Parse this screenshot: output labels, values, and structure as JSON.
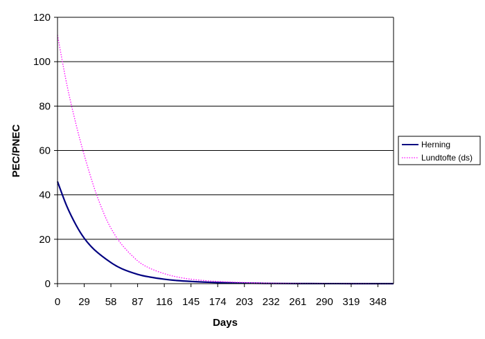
{
  "chart_data": {
    "type": "line",
    "title": "",
    "xlabel": "Days",
    "ylabel": "PEC/PNEC",
    "x_ticks": [
      "0",
      "29",
      "58",
      "87",
      "116",
      "145",
      "174",
      "203",
      "232",
      "261",
      "290",
      "319",
      "348"
    ],
    "y_ticks": [
      "0",
      "20",
      "40",
      "60",
      "80",
      "100",
      "120"
    ],
    "xlim": [
      0,
      365
    ],
    "ylim": [
      0,
      120
    ],
    "grid": "horizontal major gridlines",
    "legend_position": "right",
    "series": [
      {
        "name": "Herning",
        "color": "#000080",
        "style": "solid",
        "x": [
          0,
          10,
          20,
          29,
          40,
          58,
          70,
          87,
          100,
          116,
          130,
          145,
          160,
          174,
          190,
          203,
          220,
          232,
          261,
          290,
          319,
          348,
          365
        ],
        "y": [
          46,
          35,
          26.5,
          20.5,
          15.3,
          9.5,
          6.7,
          4.2,
          3.0,
          2.0,
          1.4,
          1.0,
          0.7,
          0.5,
          0.35,
          0.25,
          0.15,
          0.1,
          0.05,
          0.02,
          0.01,
          0.0,
          0.0
        ]
      },
      {
        "name": "Lundtofte (ds)",
        "color": "#ff00ff",
        "style": "dotted",
        "x": [
          0,
          10,
          20,
          29,
          40,
          50,
          58,
          70,
          87,
          100,
          116,
          130,
          145,
          160,
          174,
          190,
          203,
          220,
          232,
          261,
          290,
          319,
          348,
          365
        ],
        "y": [
          112,
          90,
          72,
          58,
          43,
          32,
          25,
          17.5,
          10.3,
          7,
          4.5,
          3,
          2,
          1.4,
          1.0,
          0.7,
          0.5,
          0.3,
          0.2,
          0.1,
          0.05,
          0.02,
          0.01,
          0.0
        ]
      }
    ]
  }
}
